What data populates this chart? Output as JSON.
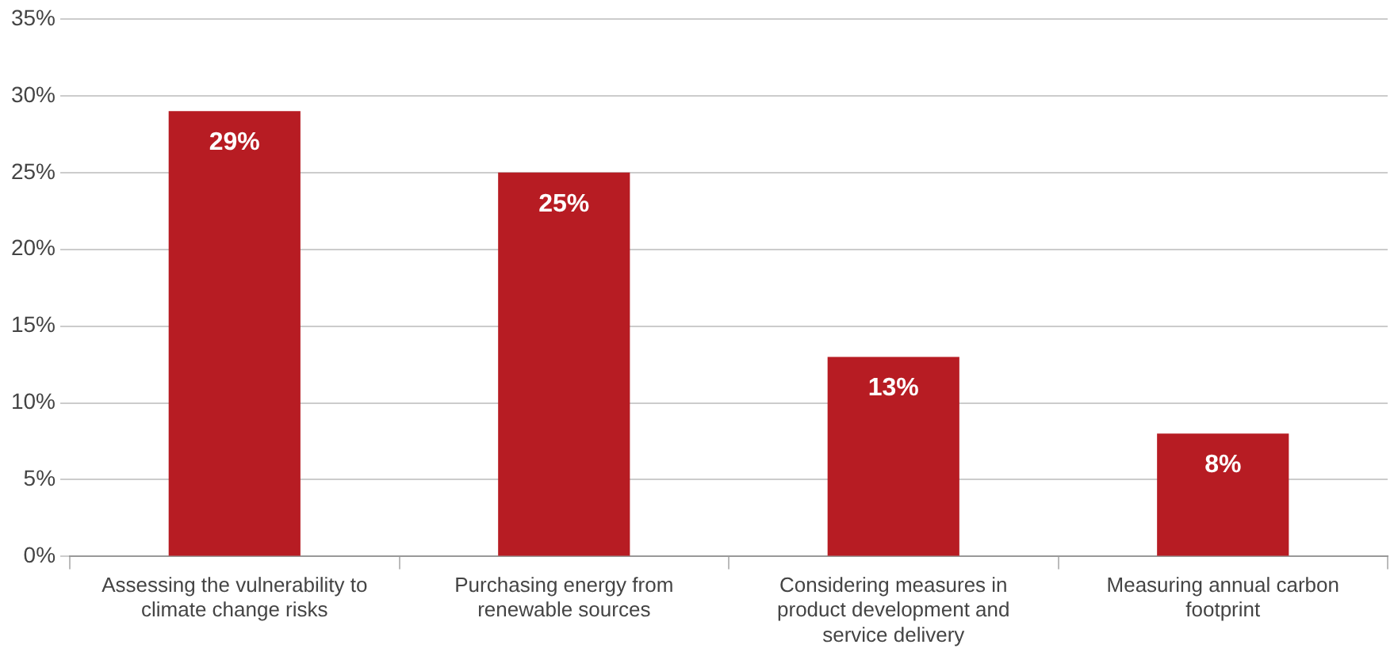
{
  "chart_data": {
    "type": "bar",
    "categories": [
      "Assessing the vulnerability to climate change risks",
      "Purchasing energy from renewable sources",
      "Considering measures in product development and service delivery",
      "Measuring annual carbon footprint"
    ],
    "values": [
      29,
      25,
      13,
      8
    ],
    "value_labels": [
      "29%",
      "25%",
      "13%",
      "8%"
    ],
    "color": "#b71c23",
    "ylim": [
      0,
      35
    ],
    "yticks": [
      {
        "value": 0,
        "label": "0%"
      },
      {
        "value": 5,
        "label": "5%"
      },
      {
        "value": 10,
        "label": "10%"
      },
      {
        "value": 15,
        "label": "15%"
      },
      {
        "value": 20,
        "label": "20%"
      },
      {
        "value": 25,
        "label": "25%"
      },
      {
        "value": 30,
        "label": "30%"
      },
      {
        "value": 35,
        "label": "35%"
      }
    ],
    "grid": "y",
    "legend": false
  }
}
